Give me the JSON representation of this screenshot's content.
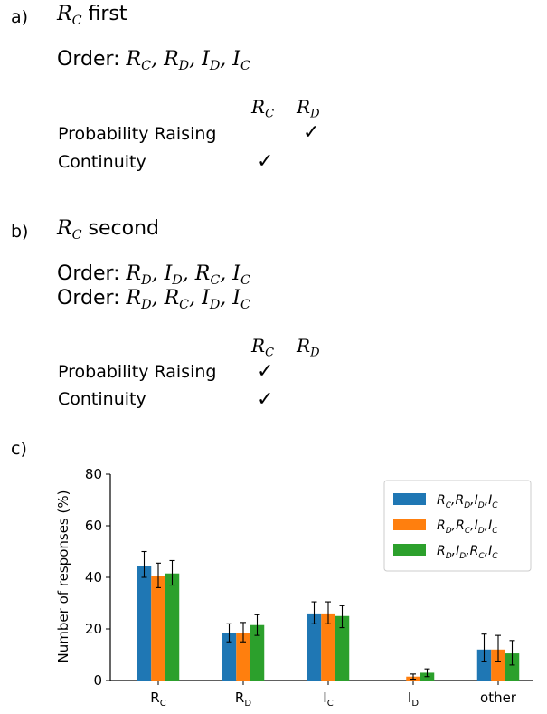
{
  "panel_a": {
    "label": "a)",
    "heading_var": "R",
    "heading_sub": "C",
    "heading_word": "first",
    "orders": [
      {
        "prefix": "Order:",
        "terms": [
          [
            "R",
            "C"
          ],
          [
            "R",
            "D"
          ],
          [
            "I",
            "D"
          ],
          [
            "I",
            "C"
          ]
        ]
      }
    ],
    "columns": [
      [
        "R",
        "C"
      ],
      [
        "R",
        "D"
      ]
    ],
    "rows": [
      {
        "label": "Probability Raising",
        "checks": [
          false,
          true
        ]
      },
      {
        "label": "Continuity",
        "checks": [
          true,
          false
        ]
      }
    ],
    "check_glyph": "✓"
  },
  "panel_b": {
    "label": "b)",
    "heading_var": "R",
    "heading_sub": "C",
    "heading_word": "second",
    "orders": [
      {
        "prefix": "Order:",
        "terms": [
          [
            "R",
            "D"
          ],
          [
            "I",
            "D"
          ],
          [
            "R",
            "C"
          ],
          [
            "I",
            "C"
          ]
        ]
      },
      {
        "prefix": "Order:",
        "terms": [
          [
            "R",
            "D"
          ],
          [
            "R",
            "C"
          ],
          [
            "I",
            "D"
          ],
          [
            "I",
            "C"
          ]
        ]
      }
    ],
    "columns": [
      [
        "R",
        "C"
      ],
      [
        "R",
        "D"
      ]
    ],
    "rows": [
      {
        "label": "Probability Raising",
        "checks": [
          true,
          false
        ]
      },
      {
        "label": "Continuity",
        "checks": [
          true,
          false
        ]
      }
    ],
    "check_glyph": "✓"
  },
  "panel_c": {
    "label": "c)"
  },
  "chart_data": {
    "type": "bar",
    "ylabel": "Number of responses (%)",
    "ylim": [
      0,
      80
    ],
    "yticks": [
      0,
      20,
      40,
      60,
      80
    ],
    "categories": [
      {
        "base": "R",
        "sub": "C"
      },
      {
        "base": "R",
        "sub": "D"
      },
      {
        "base": "I",
        "sub": "C"
      },
      {
        "base": "I",
        "sub": "D"
      },
      {
        "base": "other",
        "sub": ""
      }
    ],
    "series": [
      {
        "name": "R_C,R_D,I_D,I_C",
        "legend_terms": [
          [
            "R",
            "C"
          ],
          [
            "R",
            "D"
          ],
          [
            "I",
            "D"
          ],
          [
            "I",
            "C"
          ]
        ],
        "color": "#1f77b4",
        "values": [
          44.5,
          18.5,
          26,
          0,
          12
        ],
        "err_low": [
          40,
          15,
          22,
          0,
          7.5
        ],
        "err_high": [
          50,
          22,
          30.5,
          0,
          18
        ]
      },
      {
        "name": "R_D,R_C,I_D,I_C",
        "legend_terms": [
          [
            "R",
            "D"
          ],
          [
            "R",
            "C"
          ],
          [
            "I",
            "D"
          ],
          [
            "I",
            "C"
          ]
        ],
        "color": "#ff7f0e",
        "values": [
          40.5,
          18.5,
          26,
          1.5,
          12
        ],
        "err_low": [
          36,
          15,
          22,
          0.5,
          7.5
        ],
        "err_high": [
          45.5,
          22.5,
          30.5,
          2.5,
          17.5
        ]
      },
      {
        "name": "R_D,I_D,R_C,I_C",
        "legend_terms": [
          [
            "R",
            "D"
          ],
          [
            "I",
            "D"
          ],
          [
            "R",
            "C"
          ],
          [
            "I",
            "C"
          ]
        ],
        "color": "#2ca02c",
        "values": [
          41.5,
          21.5,
          25,
          3,
          10.5
        ],
        "err_low": [
          37,
          17.5,
          20.5,
          1.5,
          6
        ],
        "err_high": [
          46.5,
          25.5,
          29,
          4.5,
          15.5
        ]
      }
    ],
    "legend_position": "top-right",
    "grid": false
  }
}
